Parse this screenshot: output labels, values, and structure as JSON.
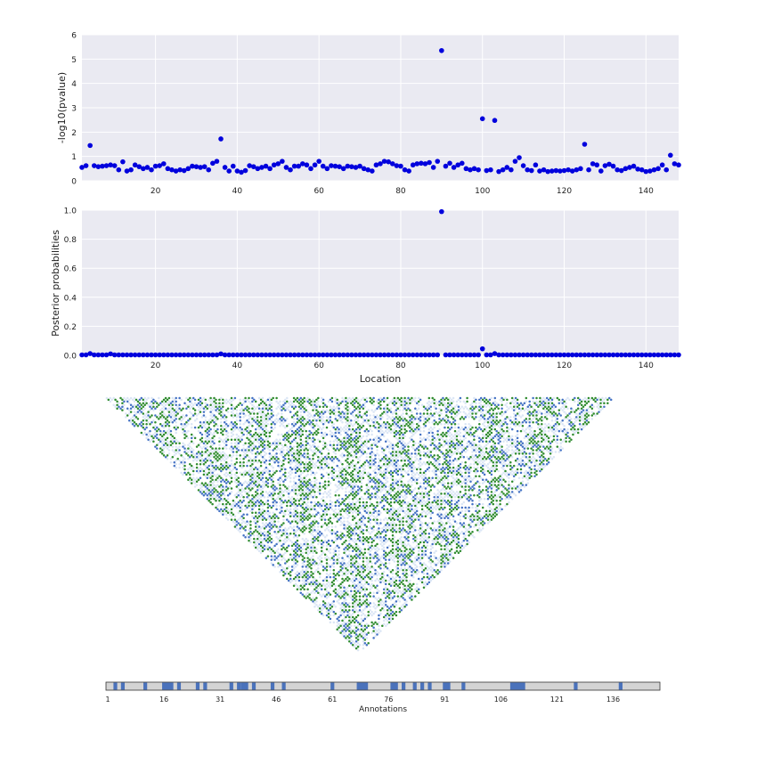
{
  "chart_data": [
    {
      "type": "scatter",
      "ylabel": "-log10(pvalue)",
      "xlim": [
        2,
        148
      ],
      "ylim": [
        0,
        6
      ],
      "xticks": [
        20,
        40,
        60,
        80,
        100,
        120,
        140
      ],
      "yticks": [
        0,
        1,
        2,
        3,
        4,
        5,
        6
      ],
      "grid": true,
      "color": "#0000dd",
      "x_start": 2,
      "y": [
        0.55,
        0.62,
        1.45,
        0.62,
        0.58,
        0.6,
        0.62,
        0.65,
        0.62,
        0.45,
        0.78,
        0.4,
        0.45,
        0.65,
        0.58,
        0.5,
        0.55,
        0.45,
        0.6,
        0.62,
        0.7,
        0.5,
        0.45,
        0.4,
        0.45,
        0.42,
        0.5,
        0.6,
        0.58,
        0.55,
        0.58,
        0.45,
        0.72,
        0.8,
        1.72,
        0.55,
        0.4,
        0.6,
        0.4,
        0.35,
        0.42,
        0.62,
        0.58,
        0.5,
        0.55,
        0.6,
        0.5,
        0.65,
        0.7,
        0.8,
        0.55,
        0.45,
        0.6,
        0.6,
        0.7,
        0.65,
        0.5,
        0.65,
        0.8,
        0.6,
        0.5,
        0.62,
        0.6,
        0.58,
        0.5,
        0.6,
        0.58,
        0.55,
        0.6,
        0.5,
        0.45,
        0.4,
        0.65,
        0.7,
        0.8,
        0.78,
        0.7,
        0.62,
        0.6,
        0.45,
        0.4,
        0.65,
        0.7,
        0.72,
        0.7,
        0.75,
        0.55,
        0.8,
        5.35,
        0.6,
        0.72,
        0.55,
        0.65,
        0.72,
        0.5,
        0.45,
        0.5,
        0.45,
        2.55,
        0.42,
        0.45,
        2.48,
        0.38,
        0.45,
        0.55,
        0.45,
        0.8,
        0.95,
        0.62,
        0.45,
        0.42,
        0.65,
        0.4,
        0.45,
        0.38,
        0.4,
        0.42,
        0.4,
        0.42,
        0.45,
        0.4,
        0.45,
        0.5,
        1.5,
        0.45,
        0.7,
        0.65,
        0.4,
        0.62,
        0.68,
        0.6,
        0.45,
        0.42,
        0.5,
        0.55,
        0.6,
        0.48,
        0.45,
        0.38,
        0.4,
        0.45,
        0.5,
        0.65,
        0.45,
        1.05,
        0.7,
        0.65
      ]
    },
    {
      "type": "scatter",
      "xlabel": "Location",
      "ylabel": "Posterior probabilities",
      "xlim": [
        2,
        148
      ],
      "ylim": [
        0,
        1.0
      ],
      "xticks": [
        20,
        40,
        60,
        80,
        100,
        120,
        140
      ],
      "yticks": [
        0.0,
        0.2,
        0.4,
        0.6,
        0.8,
        1.0
      ],
      "grid": true,
      "color": "#0000dd",
      "baseline": 0.003,
      "points": [
        {
          "x": 4,
          "y": 0.012
        },
        {
          "x": 9,
          "y": 0.01
        },
        {
          "x": 36,
          "y": 0.01
        },
        {
          "x": 90,
          "y": 0.99
        },
        {
          "x": 100,
          "y": 0.045
        },
        {
          "x": 103,
          "y": 0.012
        }
      ]
    },
    {
      "type": "heatmap",
      "shape": "triangle",
      "n": 148,
      "colors": [
        "#2e8b2e",
        "#4472c4",
        "#dbe6f5"
      ]
    },
    {
      "type": "bar",
      "xlabel": "Annotations",
      "xlim": [
        1,
        148
      ],
      "xticks": [
        1,
        16,
        31,
        46,
        61,
        76,
        91,
        106,
        121,
        136
      ],
      "background": "#d4d4d4",
      "highlight_color": "#4a72bb",
      "highlight_ranges": [
        [
          3,
          3
        ],
        [
          5,
          5
        ],
        [
          11,
          11
        ],
        [
          16,
          18
        ],
        [
          20,
          20
        ],
        [
          25,
          25
        ],
        [
          27,
          27
        ],
        [
          34,
          34
        ],
        [
          36,
          36
        ],
        [
          37,
          38
        ],
        [
          40,
          40
        ],
        [
          45,
          45
        ],
        [
          48,
          48
        ],
        [
          61,
          61
        ],
        [
          68,
          70
        ],
        [
          77,
          78
        ],
        [
          80,
          80
        ],
        [
          83,
          83
        ],
        [
          85,
          85
        ],
        [
          87,
          87
        ],
        [
          91,
          92
        ],
        [
          96,
          96
        ],
        [
          109,
          112
        ],
        [
          126,
          126
        ],
        [
          138,
          138
        ]
      ]
    }
  ]
}
